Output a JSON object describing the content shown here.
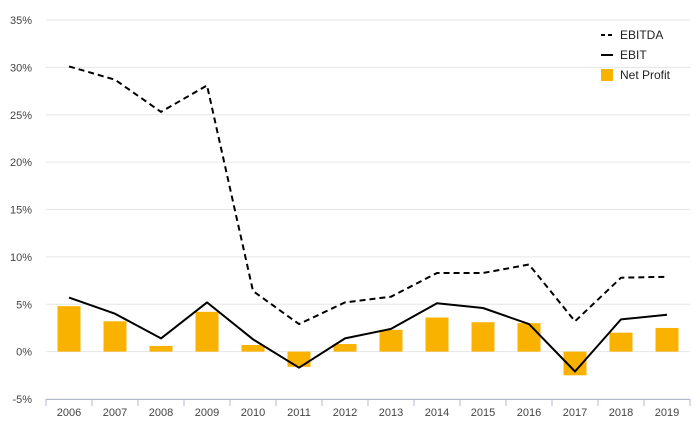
{
  "chart_data": {
    "type": "bar",
    "categories": [
      "2006",
      "2007",
      "2008",
      "2009",
      "2010",
      "2011",
      "2012",
      "2013",
      "2014",
      "2015",
      "2016",
      "2017",
      "2018",
      "2019"
    ],
    "series": [
      {
        "name": "EBITDA",
        "kind": "line",
        "style": "dashed",
        "color": "#000000",
        "values": [
          30.1,
          28.7,
          25.3,
          28.1,
          6.4,
          2.9,
          5.2,
          5.8,
          8.3,
          8.3,
          9.2,
          3.2,
          7.8,
          7.9
        ]
      },
      {
        "name": "EBIT",
        "kind": "line",
        "style": "solid",
        "color": "#000000",
        "values": [
          5.7,
          4.0,
          1.4,
          5.2,
          1.3,
          -1.7,
          1.4,
          2.4,
          5.1,
          4.6,
          2.9,
          -2.1,
          3.4,
          3.9
        ]
      },
      {
        "name": "Net Profit",
        "kind": "bar",
        "color": "#f9b200",
        "values": [
          4.8,
          3.2,
          0.6,
          4.2,
          0.7,
          -1.6,
          0.8,
          2.3,
          3.6,
          3.1,
          3.0,
          -2.5,
          2.0,
          2.5
        ]
      }
    ],
    "ylim": [
      -5,
      35
    ],
    "yticks": [
      "-5%",
      "0%",
      "5%",
      "10%",
      "15%",
      "20%",
      "25%",
      "30%",
      "35%"
    ],
    "ytick_values": [
      -5,
      0,
      5,
      10,
      15,
      20,
      25,
      30,
      35
    ],
    "grid": true,
    "legend": "top-right",
    "title": "",
    "xlabel": "",
    "ylabel": ""
  }
}
